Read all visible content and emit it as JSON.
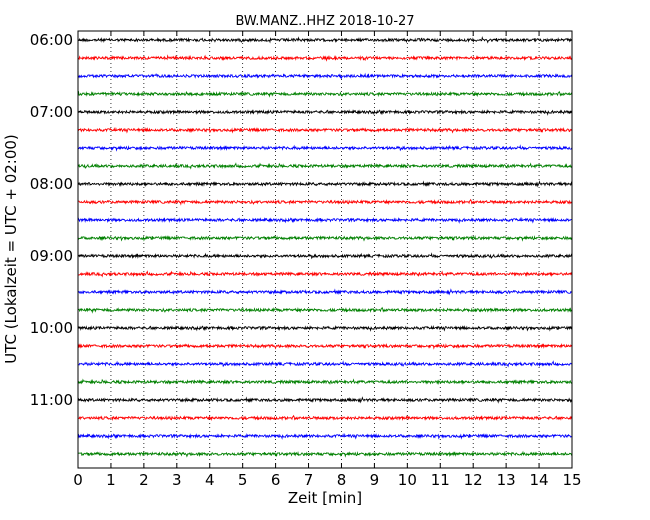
{
  "chart_data": {
    "type": "line",
    "title": "BW.MANZ..HHZ 2018-10-27",
    "xlabel": "Zeit  [min]",
    "ylabel": "UTC (Lokalzeit = UTC + 02:00)",
    "xlim": [
      0,
      15
    ],
    "x_ticks": [
      "0",
      "1",
      "2",
      "3",
      "4",
      "5",
      "6",
      "7",
      "8",
      "9",
      "10",
      "11",
      "12",
      "13",
      "14",
      "15"
    ],
    "y_tick_labels": [
      "06:00",
      "07:00",
      "08:00",
      "09:00",
      "10:00",
      "11:00"
    ],
    "trace_colors": [
      "#000000",
      "#ff0000",
      "#0000ff",
      "#008000"
    ],
    "grid": "vertical dotted",
    "series": [
      {
        "start": "06:00",
        "color": "#000000"
      },
      {
        "start": "06:15",
        "color": "#ff0000"
      },
      {
        "start": "06:30",
        "color": "#0000ff"
      },
      {
        "start": "06:45",
        "color": "#008000"
      },
      {
        "start": "07:00",
        "color": "#000000"
      },
      {
        "start": "07:15",
        "color": "#ff0000"
      },
      {
        "start": "07:30",
        "color": "#0000ff"
      },
      {
        "start": "07:45",
        "color": "#008000"
      },
      {
        "start": "08:00",
        "color": "#000000"
      },
      {
        "start": "08:15",
        "color": "#ff0000"
      },
      {
        "start": "08:30",
        "color": "#0000ff"
      },
      {
        "start": "08:45",
        "color": "#008000"
      },
      {
        "start": "09:00",
        "color": "#000000"
      },
      {
        "start": "09:15",
        "color": "#ff0000"
      },
      {
        "start": "09:30",
        "color": "#0000ff"
      },
      {
        "start": "09:45",
        "color": "#008000"
      },
      {
        "start": "10:00",
        "color": "#000000"
      },
      {
        "start": "10:15",
        "color": "#ff0000"
      },
      {
        "start": "10:30",
        "color": "#0000ff"
      },
      {
        "start": "10:45",
        "color": "#008000"
      },
      {
        "start": "11:00",
        "color": "#000000"
      },
      {
        "start": "11:15",
        "color": "#ff0000"
      },
      {
        "start": "11:30",
        "color": "#0000ff"
      },
      {
        "start": "11:45",
        "color": "#008000"
      }
    ]
  }
}
